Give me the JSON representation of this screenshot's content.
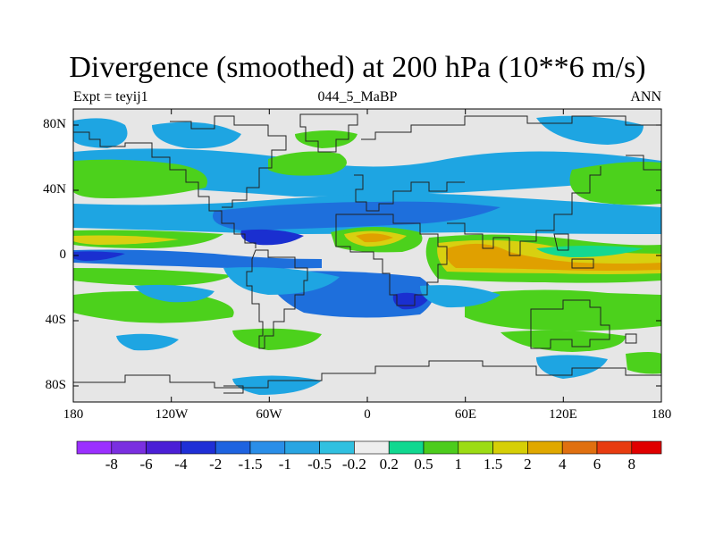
{
  "title": "Divergence (smoothed) at 200 hPa (10**6 m/s)",
  "left_subtitle": "Expt = teyij1",
  "center_subtitle": "044_5_MaBP",
  "right_subtitle": "ANN",
  "y_tick_labels": [
    "80N",
    "40N",
    "0",
    "40S",
    "80S"
  ],
  "x_tick_labels": [
    "180",
    "120W",
    "60W",
    "0",
    "60E",
    "120E",
    "180"
  ],
  "colorbar_labels": [
    "-8",
    "-6",
    "-4",
    "-2",
    "-1.5",
    "-1",
    "-0.5",
    "-0.2",
    "0.2",
    "0.5",
    "1",
    "1.5",
    "2",
    "4",
    "6",
    "8"
  ],
  "colorbar_colors": [
    "#9b30ff",
    "#7a2fe0",
    "#4b1fd6",
    "#1f2fd6",
    "#1e63e0",
    "#2a8ee8",
    "#29a5e2",
    "#30c0e0",
    "#eeeeee",
    "#10d890",
    "#4ccc1c",
    "#9cdc14",
    "#d6cf06",
    "#e0a800",
    "#e07010",
    "#e83c10",
    "#e00000"
  ],
  "field_colors": {
    "background": "#e6e6e6",
    "light_blue": "#1ea5e2",
    "medium_blue": "#1e6fdc",
    "dark_blue": "#1a2fd0",
    "green": "#4cd11c",
    "teal": "#14d890",
    "yellow": "#d8d010",
    "orange": "#e0a000",
    "coast": "#222222"
  }
}
